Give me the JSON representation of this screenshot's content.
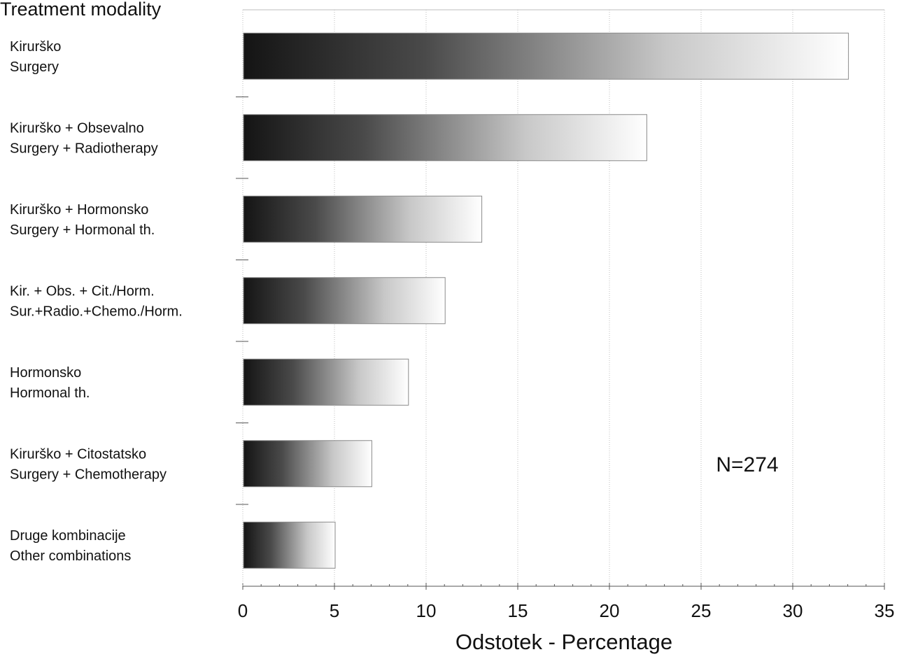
{
  "chart_data": {
    "type": "bar",
    "orientation": "horizontal",
    "title": "Treatment modality",
    "xlabel": "Odstotek - Percentage",
    "ylabel": "",
    "xlim": [
      0,
      35
    ],
    "xticks": [
      "0",
      "5",
      "10",
      "15",
      "20",
      "25",
      "30",
      "35"
    ],
    "categories": [
      [
        "Kirurško",
        "Surgery"
      ],
      [
        "Kirurško + Obsevalno",
        "Surgery + Radiotherapy"
      ],
      [
        "Kirurško + Hormonsko",
        "Surgery + Hormonal th."
      ],
      [
        "Kir. + Obs. + Cit./Horm.",
        "Sur.+Radio.+Chemo./Horm."
      ],
      [
        "Hormonsko",
        "Hormonal th."
      ],
      [
        "Kirurško + Citostatsko",
        "Surgery + Chemotherapy"
      ],
      [
        "Druge kombinacije",
        "Other combinations"
      ]
    ],
    "values": [
      33,
      22,
      13,
      11,
      9,
      7,
      5
    ],
    "annotation": "N=274",
    "grid": true,
    "legend": "none",
    "colors": {
      "bar_dark": "#141414",
      "bar_light": "#ffffff",
      "bar_edge": "#8a8a8a",
      "grid": "#bdbdbd",
      "axis": "#555555",
      "text": "#111111"
    }
  }
}
